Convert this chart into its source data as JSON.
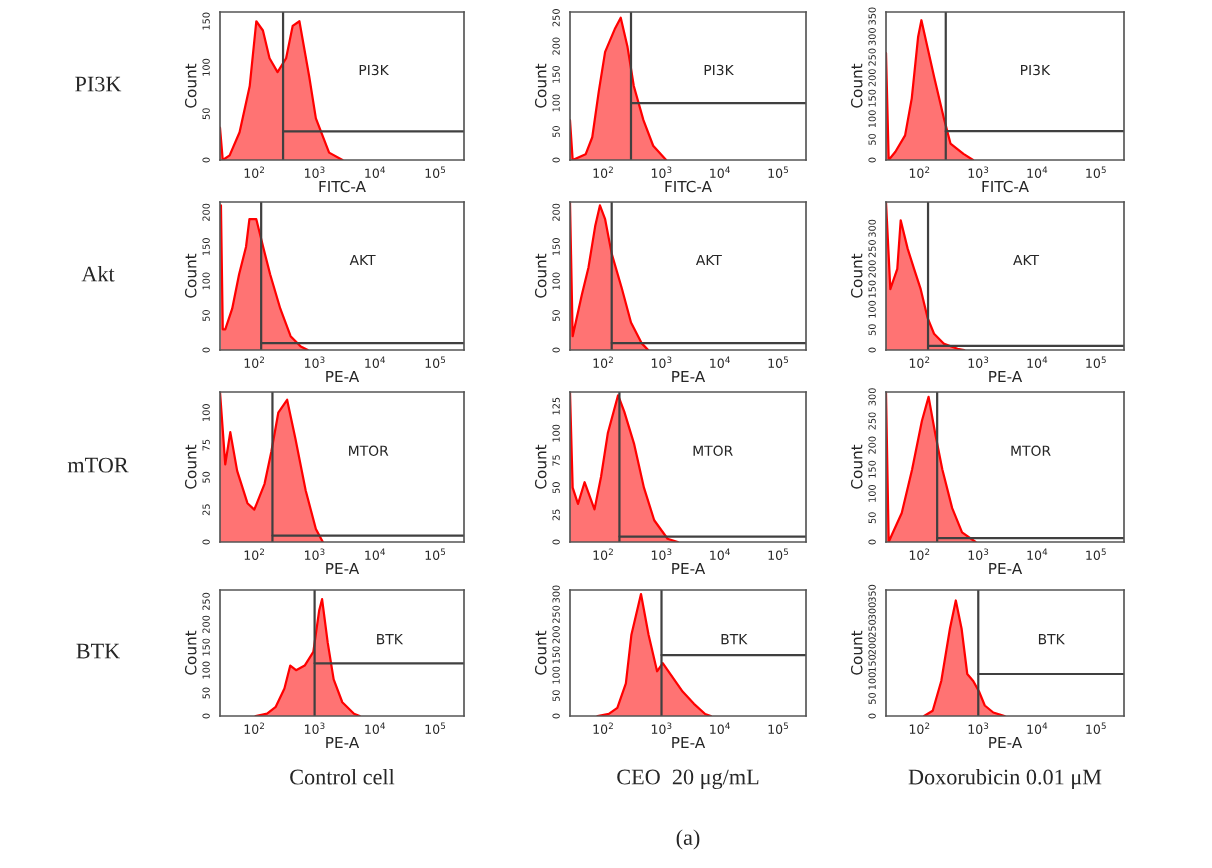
{
  "chart_data": [
    {
      "type": "area",
      "xlabel": "FITC-A",
      "ylabel": "Count",
      "annotations": [
        "PI3K"
      ],
      "log": "x",
      "xlim": [
        27,
        300000
      ],
      "xticks": [
        {
          "value": 100,
          "label": "10$^{2}$"
        },
        {
          "value": 1000,
          "label": "10$^{3}$"
        },
        {
          "value": 10000,
          "label": "10$^{4}$"
        },
        {
          "value": 100000,
          "label": "10$^{5}$"
        }
      ],
      "ylim": [
        0,
        160
      ],
      "yticks": [
        0,
        50,
        100,
        150
      ],
      "ref_lines": [
        {
          "axis": "x",
          "value": 300,
          "color": "#404040"
        },
        {
          "axis": "y",
          "value": 31,
          "label": "PI3K",
          "color": "#404040"
        }
      ],
      "series": [
        {
          "color": "#ff0000",
          "x": [
            27,
            30,
            39,
            57,
            84,
            108,
            139,
            179,
            243,
            337,
            433,
            560,
            815,
            1050,
            1740,
            2900
          ],
          "values": [
            35,
            0,
            5,
            30,
            80,
            150,
            140,
            110,
            95,
            110,
            145,
            150,
            90,
            45,
            8,
            0
          ]
        }
      ]
    },
    {
      "type": "area",
      "xlabel": "FITC-A",
      "ylabel": "Count",
      "log": "x",
      "xlim": [
        27,
        300000
      ],
      "xticks": [
        {
          "value": 100,
          "label": "10$^{2}$"
        },
        {
          "value": 1000,
          "label": "10$^{3}$"
        },
        {
          "value": 10000,
          "label": "10$^{4}$"
        },
        {
          "value": 100000,
          "label": "10$^{5}$"
        }
      ],
      "ylim": [
        0,
        260
      ],
      "yticks": [
        0,
        50,
        100,
        150,
        200,
        250
      ],
      "ref_lines": [
        {
          "axis": "x",
          "value": 300,
          "color": "#404040"
        },
        {
          "axis": "y",
          "value": 100,
          "label": "PI3K",
          "color": "#404040"
        }
      ],
      "series": [
        {
          "color": "#ff0000",
          "x": [
            27,
            30,
            50,
            65,
            84,
            108,
            158,
            200,
            260,
            335,
            490,
            720,
            1200
          ],
          "values": [
            70,
            0,
            10,
            40,
            120,
            190,
            230,
            250,
            200,
            130,
            70,
            25,
            0
          ]
        }
      ]
    },
    {
      "type": "area",
      "xlabel": "FITC-A",
      "ylabel": "Count",
      "log": "x",
      "xlim": [
        27,
        300000
      ],
      "xticks": [
        {
          "value": 100,
          "label": "10$^{2}$"
        },
        {
          "value": 1000,
          "label": "10$^{3}$"
        },
        {
          "value": 10000,
          "label": "10$^{4}$"
        },
        {
          "value": 100000,
          "label": "10$^{5}$"
        }
      ],
      "ylim": [
        0,
        360
      ],
      "yticks": [
        0,
        50,
        100,
        150,
        200,
        250,
        300,
        350
      ],
      "ref_lines": [
        {
          "axis": "x",
          "value": 280,
          "color": "#404040"
        },
        {
          "axis": "y",
          "value": 70,
          "label": "PI3K",
          "color": "#404040"
        }
      ],
      "series": [
        {
          "color": "#ff0000",
          "x": [
            27,
            30,
            39,
            57,
            74,
            95,
            108,
            139,
            179,
            262,
            337,
            560,
            815
          ],
          "values": [
            260,
            0,
            20,
            60,
            150,
            300,
            340,
            270,
            200,
            100,
            40,
            15,
            0
          ]
        }
      ]
    },
    {
      "type": "area",
      "xlabel": "PE-A",
      "ylabel": "Count",
      "annotations": [
        "Akt"
      ],
      "log": "x",
      "xlim": [
        27,
        300000
      ],
      "xticks": [
        {
          "value": 100,
          "label": "10$^{2}$"
        },
        {
          "value": 1000,
          "label": "10$^{3}$"
        },
        {
          "value": 10000,
          "label": "10$^{4}$"
        },
        {
          "value": 100000,
          "label": "10$^{5}$"
        }
      ],
      "ylim": [
        0,
        215
      ],
      "yticks": [
        0,
        50,
        100,
        150,
        200
      ],
      "ref_lines": [
        {
          "axis": "x",
          "value": 130,
          "color": "#404040"
        },
        {
          "axis": "y",
          "value": 10,
          "label": "AKT",
          "color": "#404040"
        }
      ],
      "series": [
        {
          "color": "#ff0000",
          "x": [
            28,
            30,
            33,
            43,
            56,
            73,
            83,
            108,
            140,
            183,
            270,
            400,
            590,
            770
          ],
          "values": [
            210,
            30,
            30,
            60,
            110,
            150,
            190,
            190,
            150,
            110,
            60,
            20,
            5,
            0
          ]
        }
      ]
    },
    {
      "type": "area",
      "xlabel": "PE-A",
      "ylabel": "Count",
      "log": "x",
      "xlim": [
        27,
        300000
      ],
      "xticks": [
        {
          "value": 100,
          "label": "10$^{2}$"
        },
        {
          "value": 1000,
          "label": "10$^{3}$"
        },
        {
          "value": 10000,
          "label": "10$^{4}$"
        },
        {
          "value": 100000,
          "label": "10$^{5}$"
        }
      ],
      "ylim": [
        0,
        215
      ],
      "yticks": [
        0,
        50,
        100,
        150,
        200
      ],
      "ref_lines": [
        {
          "axis": "x",
          "value": 140,
          "color": "#404040"
        },
        {
          "axis": "y",
          "value": 10,
          "label": "AKT",
          "color": "#404040"
        }
      ],
      "series": [
        {
          "color": "#ff0000",
          "x": [
            27,
            30,
            43,
            56,
            73,
            88,
            108,
            140,
            208,
            300,
            455,
            590
          ],
          "values": [
            215,
            20,
            80,
            120,
            180,
            210,
            190,
            140,
            90,
            40,
            10,
            0
          ]
        }
      ]
    },
    {
      "type": "area",
      "xlabel": "PE-A",
      "ylabel": "Count",
      "log": "x",
      "xlim": [
        27,
        300000
      ],
      "xticks": [
        {
          "value": 100,
          "label": "10$^{2}$"
        },
        {
          "value": 1000,
          "label": "10$^{3}$"
        },
        {
          "value": 10000,
          "label": "10$^{4}$"
        },
        {
          "value": 100000,
          "label": "10$^{5}$"
        }
      ],
      "ylim": [
        0,
        365
      ],
      "yticks": [
        0,
        50,
        100,
        150,
        200,
        250,
        300
      ],
      "ref_lines": [
        {
          "axis": "x",
          "value": 140,
          "color": "#404040"
        },
        {
          "axis": "y",
          "value": 10,
          "label": "AKT",
          "color": "#404040"
        }
      ],
      "series": [
        {
          "color": "#ff0000",
          "x": [
            27,
            32,
            42,
            48,
            63,
            81,
            105,
            137,
            177,
            263,
            445,
            577
          ],
          "values": [
            365,
            150,
            200,
            320,
            250,
            200,
            150,
            80,
            40,
            15,
            3,
            0
          ]
        }
      ]
    },
    {
      "type": "area",
      "xlabel": "PE-A",
      "ylabel": "Count",
      "annotations": [
        "mTOR"
      ],
      "log": "x",
      "xlim": [
        27,
        300000
      ],
      "xticks": [
        {
          "value": 100,
          "label": "10$^{2}$"
        },
        {
          "value": 1000,
          "label": "10$^{3}$"
        },
        {
          "value": 10000,
          "label": "10$^{4}$"
        },
        {
          "value": 100000,
          "label": "10$^{5}$"
        }
      ],
      "ylim": [
        0,
        116
      ],
      "yticks": [
        0,
        25,
        50,
        75,
        100
      ],
      "ref_lines": [
        {
          "axis": "x",
          "value": 200,
          "color": "#404040"
        },
        {
          "axis": "y",
          "value": 5,
          "label": "MTOR",
          "color": "#404040"
        }
      ],
      "series": [
        {
          "color": "#ff0000",
          "x": [
            27,
            33,
            40,
            52,
            77,
            100,
            148,
            192,
            250,
            350,
            480,
            710,
            1050,
            1370
          ],
          "values": [
            116,
            60,
            85,
            55,
            30,
            25,
            45,
            70,
            100,
            110,
            80,
            40,
            10,
            0
          ]
        }
      ]
    },
    {
      "type": "area",
      "xlabel": "PE-A",
      "ylabel": "Count",
      "log": "x",
      "xlim": [
        27,
        300000
      ],
      "xticks": [
        {
          "value": 100,
          "label": "10$^{2}$"
        },
        {
          "value": 1000,
          "label": "10$^{3}$"
        },
        {
          "value": 10000,
          "label": "10$^{4}$"
        },
        {
          "value": 100000,
          "label": "10$^{5}$"
        }
      ],
      "ylim": [
        0,
        138
      ],
      "yticks": [
        0,
        25,
        50,
        75,
        100,
        125
      ],
      "ref_lines": [
        {
          "axis": "x",
          "value": 190,
          "color": "#404040"
        },
        {
          "axis": "y",
          "value": 5,
          "label": "MTOR",
          "color": "#404040"
        }
      ],
      "series": [
        {
          "color": "#ff0000",
          "x": [
            27,
            30,
            37,
            48,
            71,
            92,
            120,
            180,
            230,
            340,
            500,
            750,
            1270,
            1900
          ],
          "values": [
            138,
            50,
            35,
            55,
            30,
            60,
            100,
            135,
            120,
            90,
            50,
            20,
            3,
            0
          ]
        }
      ]
    },
    {
      "type": "area",
      "xlabel": "PE-A",
      "ylabel": "Count",
      "log": "x",
      "xlim": [
        27,
        300000
      ],
      "xticks": [
        {
          "value": 100,
          "label": "10$^{2}$"
        },
        {
          "value": 1000,
          "label": "10$^{3}$"
        },
        {
          "value": 10000,
          "label": "10$^{4}$"
        },
        {
          "value": 100000,
          "label": "10$^{5}$"
        }
      ],
      "ylim": [
        0,
        310
      ],
      "yticks": [
        0,
        50,
        100,
        150,
        200,
        250,
        300
      ],
      "ref_lines": [
        {
          "axis": "x",
          "value": 200,
          "color": "#404040"
        },
        {
          "axis": "y",
          "value": 8,
          "label": "MTOR",
          "color": "#404040"
        }
      ],
      "series": [
        {
          "color": "#ff0000",
          "x": [
            27,
            30,
            34,
            50,
            75,
            110,
            143,
            188,
            245,
            360,
            530,
            900
          ],
          "values": [
            310,
            0,
            15,
            60,
            150,
            250,
            300,
            220,
            150,
            70,
            20,
            0
          ]
        }
      ]
    },
    {
      "type": "area",
      "xlabel": "PE-A",
      "ylabel": "Count",
      "annotations": [
        "BTK",
        "Control cell"
      ],
      "log": "x",
      "xlim": [
        27,
        300000
      ],
      "xticks": [
        {
          "value": 100,
          "label": "10$^{2}$"
        },
        {
          "value": 1000,
          "label": "10$^{3}$"
        },
        {
          "value": 10000,
          "label": "10$^{4}$"
        },
        {
          "value": 100000,
          "label": "10$^{5}$"
        }
      ],
      "ylim": [
        0,
        275
      ],
      "yticks": [
        0,
        50,
        100,
        150,
        200,
        250
      ],
      "ref_lines": [
        {
          "axis": "x",
          "value": 1000,
          "color": "#404040"
        },
        {
          "axis": "y",
          "value": 115,
          "label": "BTK",
          "color": "#404040"
        }
      ],
      "series": [
        {
          "color": "#ff0000",
          "x": [
            105,
            163,
            227,
            316,
            395,
            493,
            685,
            952,
            1190,
            1330,
            1650,
            2070,
            2880,
            4500,
            5600
          ],
          "values": [
            0,
            5,
            20,
            60,
            110,
            100,
            110,
            140,
            230,
            255,
            160,
            80,
            30,
            5,
            0
          ]
        }
      ]
    },
    {
      "type": "area",
      "xlabel": "PE-A",
      "ylabel": "Count",
      "annotations": [
        "CEO  20 μg/mL",
        "(a)"
      ],
      "log": "x",
      "xlim": [
        27,
        300000
      ],
      "xticks": [
        {
          "value": 100,
          "label": "10$^{2}$"
        },
        {
          "value": 1000,
          "label": "10$^{3}$"
        },
        {
          "value": 10000,
          "label": "10$^{4}$"
        },
        {
          "value": 100000,
          "label": "10$^{5}$"
        }
      ],
      "ylim": [
        0,
        310
      ],
      "yticks": [
        0,
        50,
        100,
        150,
        200,
        250,
        300
      ],
      "ref_lines": [
        {
          "axis": "x",
          "value": 1000,
          "color": "#404040"
        },
        {
          "axis": "y",
          "value": 150,
          "label": "BTK",
          "color": "#404040"
        }
      ],
      "series": [
        {
          "color": "#ff0000",
          "x": [
            80,
            125,
            175,
            245,
            305,
            445,
            600,
            840,
            1050,
            1470,
            2300,
            3600,
            5600,
            7000
          ],
          "values": [
            0,
            5,
            20,
            80,
            200,
            300,
            200,
            110,
            130,
            100,
            60,
            30,
            5,
            0
          ]
        }
      ]
    },
    {
      "type": "area",
      "xlabel": "PE-A",
      "ylabel": "Count",
      "annotations": [
        "Doxorubicin 0.01 μM"
      ],
      "log": "x",
      "xlim": [
        27,
        300000
      ],
      "xticks": [
        {
          "value": 100,
          "label": "10$^{2}$"
        },
        {
          "value": 1000,
          "label": "10$^{3}$"
        },
        {
          "value": 10000,
          "label": "10$^{4}$"
        },
        {
          "value": 100000,
          "label": "10$^{5}$"
        }
      ],
      "ylim": [
        0,
        360
      ],
      "yticks": [
        0,
        50,
        100,
        150,
        200,
        250,
        300,
        350
      ],
      "ref_lines": [
        {
          "axis": "x",
          "value": 1000,
          "color": "#404040"
        },
        {
          "axis": "y",
          "value": 120,
          "label": "BTK",
          "color": "#404040"
        }
      ],
      "series": [
        {
          "color": "#ff0000",
          "x": [
            120,
            168,
            235,
            330,
            415,
            520,
            650,
            820,
            1030,
            1290,
            1800,
            2800
          ],
          "values": [
            0,
            15,
            100,
            250,
            330,
            250,
            120,
            100,
            70,
            30,
            10,
            0
          ]
        }
      ]
    }
  ]
}
